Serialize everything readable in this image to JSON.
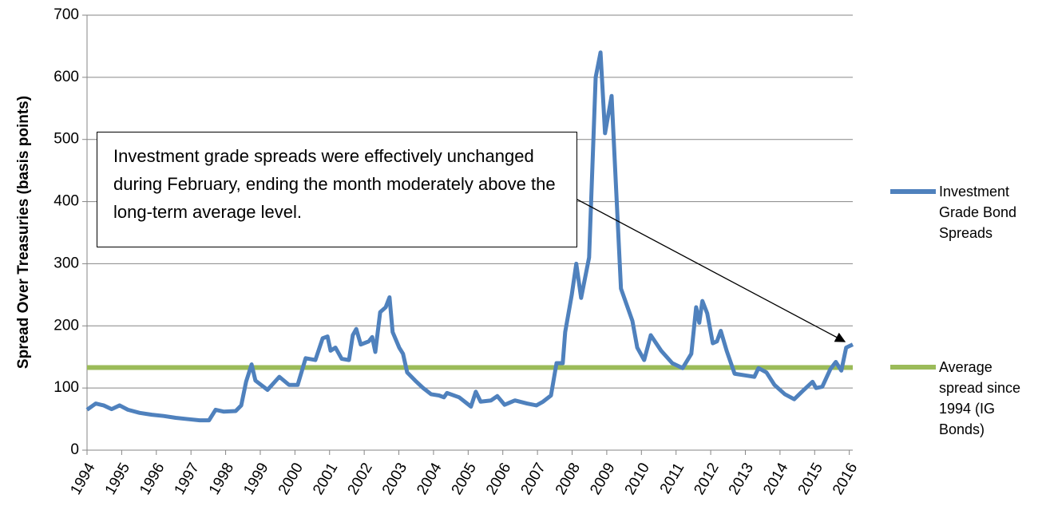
{
  "chart_data": {
    "type": "line",
    "ylabel": "Spread Over Treasuries (basis points)",
    "annotation": "Investment grade spreads were effectively unchanged during February, ending the month moderately above the long-term average level.",
    "x": [
      1994.0,
      1994.25,
      1994.48,
      1994.71,
      1994.94,
      1995.18,
      1995.52,
      1995.87,
      1996.21,
      1996.56,
      1996.9,
      1997.25,
      1997.52,
      1997.71,
      1997.94,
      1998.29,
      1998.45,
      1998.59,
      1998.75,
      1998.86,
      1999.21,
      1999.55,
      1999.83,
      2000.08,
      2000.31,
      2000.59,
      2000.8,
      2000.94,
      2001.03,
      2001.17,
      2001.35,
      2001.56,
      2001.67,
      2001.77,
      2001.9,
      2002.13,
      2002.23,
      2002.32,
      2002.46,
      2002.62,
      2002.73,
      2002.82,
      2003.01,
      2003.12,
      2003.24,
      2003.47,
      2003.7,
      2003.93,
      2004.16,
      2004.3,
      2004.39,
      2004.74,
      2004.97,
      2005.08,
      2005.22,
      2005.36,
      2005.66,
      2005.84,
      2006.05,
      2006.35,
      2006.7,
      2006.97,
      2007.16,
      2007.39,
      2007.55,
      2007.73,
      2007.8,
      2007.99,
      2008.12,
      2008.26,
      2008.49,
      2008.68,
      2008.82,
      2008.95,
      2009.14,
      2009.41,
      2009.74,
      2009.88,
      2010.08,
      2010.27,
      2010.57,
      2010.89,
      2011.19,
      2011.44,
      2011.58,
      2011.67,
      2011.76,
      2011.9,
      2012.06,
      2012.18,
      2012.29,
      2012.46,
      2012.69,
      2013.03,
      2013.26,
      2013.38,
      2013.61,
      2013.84,
      2014.14,
      2014.41,
      2014.65,
      2014.94,
      2015.04,
      2015.22,
      2015.45,
      2015.61,
      2015.77,
      2015.91,
      2016.1
    ],
    "series": [
      {
        "name": "Investment Grade Bond Spreads",
        "color": "#4f81bd",
        "values": [
          65,
          75,
          72,
          66,
          72,
          65,
          60,
          57,
          55,
          52,
          50,
          48,
          48,
          65,
          62,
          63,
          72,
          110,
          138,
          112,
          97,
          118,
          105,
          105,
          148,
          145,
          180,
          183,
          160,
          165,
          147,
          145,
          185,
          195,
          170,
          175,
          182,
          158,
          222,
          230,
          246,
          190,
          165,
          155,
          125,
          112,
          100,
          90,
          88,
          85,
          92,
          85,
          75,
          70,
          94,
          78,
          80,
          87,
          73,
          80,
          75,
          72,
          78,
          88,
          140,
          140,
          190,
          250,
          300,
          245,
          310,
          600,
          640,
          510,
          570,
          260,
          208,
          165,
          145,
          185,
          160,
          140,
          132,
          155,
          230,
          205,
          240,
          220,
          172,
          175,
          192,
          160,
          123,
          120,
          118,
          132,
          125,
          105,
          90,
          82,
          95,
          110,
          100,
          102,
          130,
          142,
          128,
          165,
          170
        ]
      }
    ],
    "reference_lines": [
      {
        "name": "Average spread since 1994 (IG Bonds)",
        "color": "#9bbb59",
        "value": 133
      }
    ],
    "xlim": [
      1994,
      2016.1
    ],
    "xticks": [
      1994,
      1995,
      1996,
      1997,
      1998,
      1999,
      2000,
      2001,
      2002,
      2003,
      2004,
      2005,
      2006,
      2007,
      2008,
      2009,
      2010,
      2011,
      2012,
      2013,
      2014,
      2015,
      2016
    ],
    "ylim": [
      0,
      700
    ],
    "yticks": [
      0,
      100,
      200,
      300,
      400,
      500,
      600,
      700
    ],
    "grid": true
  }
}
